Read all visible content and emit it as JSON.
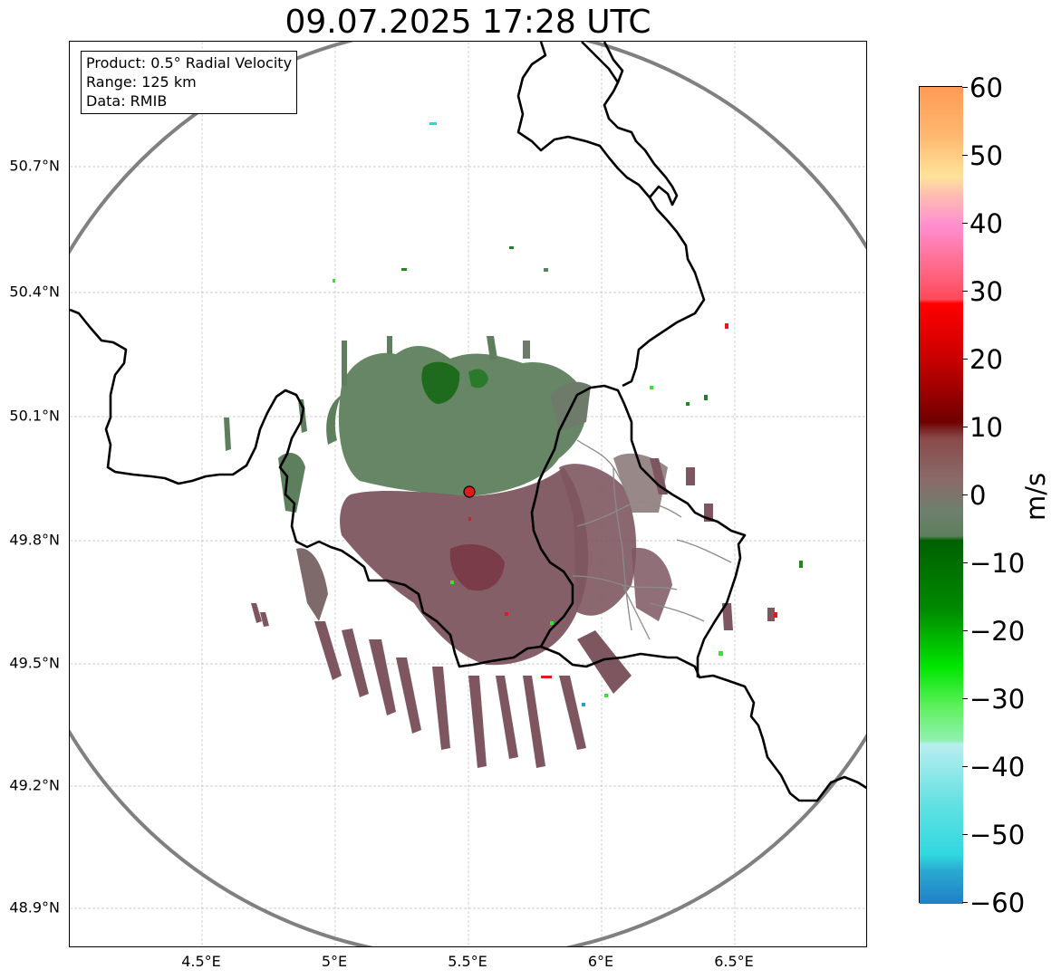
{
  "title": "09.07.2025 17:28 UTC",
  "info": {
    "product": "Product: 0.5° Radial Velocity",
    "range": "Range: 125 km",
    "data": "Data: RMIB"
  },
  "axes": {
    "lat_labels": [
      "50.7°N",
      "50.4°N",
      "50.1°N",
      "49.8°N",
      "49.5°N",
      "49.2°N",
      "48.9°N"
    ],
    "lon_labels": [
      "4.5°E",
      "5°E",
      "5.5°E",
      "6°E",
      "6.5°E"
    ]
  },
  "colorbar": {
    "unit": "m/s",
    "ticks": [
      "60",
      "50",
      "40",
      "30",
      "20",
      "10",
      "0",
      "−10",
      "−20",
      "−30",
      "−40",
      "−50",
      "−60"
    ]
  },
  "radar_site": {
    "lat": 49.914,
    "lon": 5.505
  },
  "colors": {
    "radar_ring": "#808080",
    "borders": "#000000",
    "inner_borders": "#808080",
    "site_marker": "#e31a1c",
    "inbound_green": "#5e7f5e",
    "outbound_maroon": "#7e5660"
  }
}
